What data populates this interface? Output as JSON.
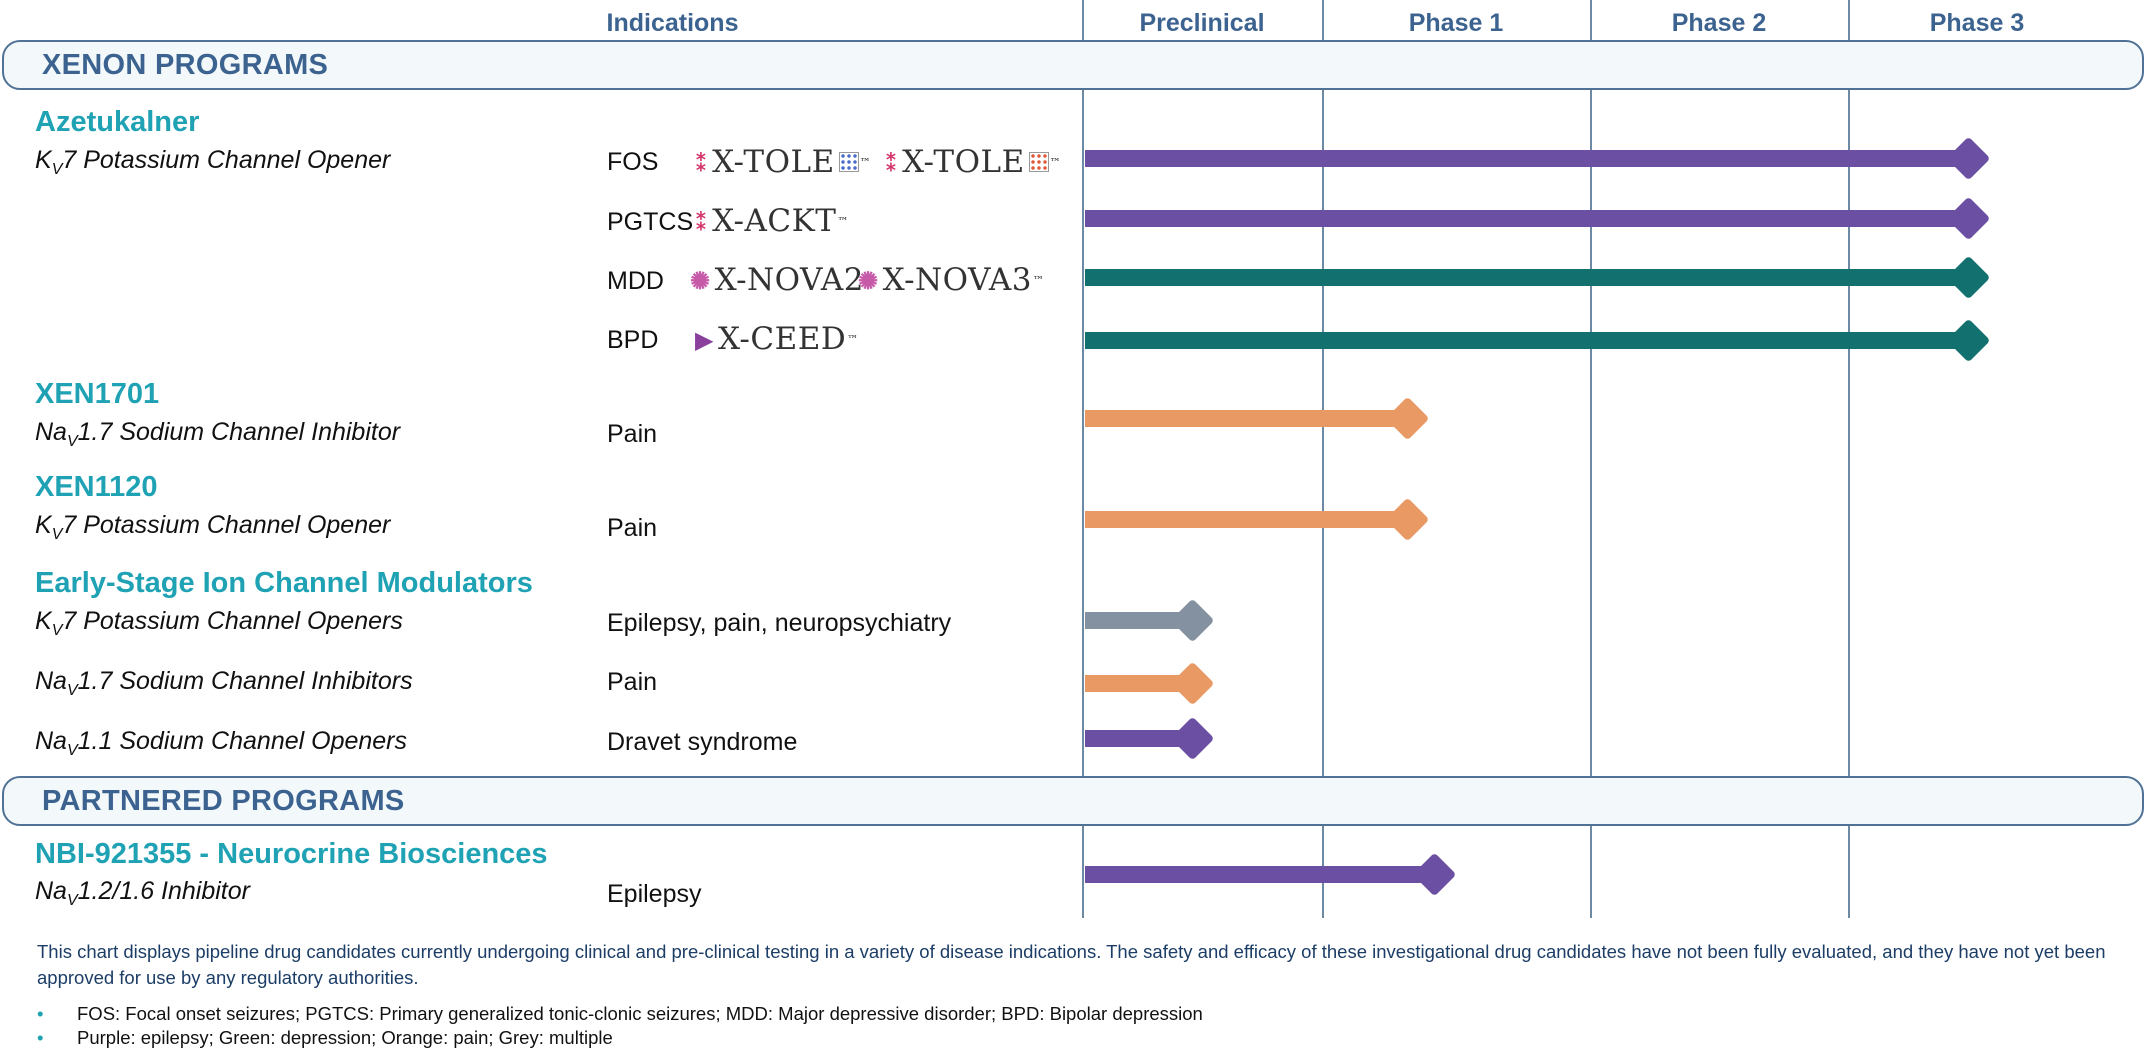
{
  "headers": {
    "indications": "Indications",
    "phases": [
      "Preclinical",
      "Phase 1",
      "Phase 2",
      "Phase 3"
    ]
  },
  "sections": {
    "xenon": "XENON PROGRAMS",
    "partnered": "PARTNERED PROGRAMS"
  },
  "programs": {
    "azetukalner": {
      "name": "Azetukalner",
      "mech_pre": "K",
      "mech_sub": "V",
      "mech_post": "7 Potassium Channel Opener",
      "rows": [
        {
          "indication": "FOS",
          "logos": [
            "X-TOLE",
            "X-TOLE"
          ],
          "tm": "™",
          "progress_phase": 3.55,
          "color": "#6b4fa3"
        },
        {
          "indication": "PGTCS",
          "logos": [
            "X-ACKT"
          ],
          "tm": "™",
          "progress_phase": 3.55,
          "color": "#6b4fa3"
        },
        {
          "indication": "MDD",
          "logos": [
            "X-NOVA2",
            "X-NOVA3"
          ],
          "tm": "™",
          "progress_phase": 3.55,
          "color": "#12706e"
        },
        {
          "indication": "BPD",
          "logos": [
            "X-CEED"
          ],
          "tm": "™",
          "progress_phase": 3.55,
          "color": "#12706e"
        }
      ]
    },
    "xen1701": {
      "name": "XEN1701",
      "mech_pre": "Na",
      "mech_sub": "V",
      "mech_post": "1.7 Sodium Channel Inhibitor",
      "indication": "Pain",
      "progress_phase": 1.4,
      "color": "#e99a64"
    },
    "xen1120": {
      "name": "XEN1120",
      "mech_pre": "K",
      "mech_sub": "V",
      "mech_post": "7 Potassium Channel Opener",
      "indication": "Pain",
      "progress_phase": 1.4,
      "color": "#e99a64"
    },
    "early": {
      "name": "Early-Stage Ion Channel Modulators",
      "rows": [
        {
          "mech_pre": "K",
          "mech_sub": "V",
          "mech_post": "7 Potassium Channel Openers",
          "indication": "Epilepsy, pain, neuropsychiatry",
          "progress_phase": 0.55,
          "color": "#8491a0"
        },
        {
          "mech_pre": "Na",
          "mech_sub": "V",
          "mech_post": "1.7 Sodium Channel Inhibitors",
          "indication": "Pain",
          "progress_phase": 0.55,
          "color": "#e99a64"
        },
        {
          "mech_pre": "Na",
          "mech_sub": "V",
          "mech_post": "1.1 Sodium Channel Openers",
          "indication": "Dravet syndrome",
          "progress_phase": 0.55,
          "color": "#6b4fa3"
        }
      ]
    },
    "nbi": {
      "name": "NBI-921355 - Neurocrine Biosciences",
      "mech_pre": "Na",
      "mech_sub": "V",
      "mech_post": "1.2/1.6 Inhibitor",
      "indication": "Epilepsy",
      "progress_phase": 1.5,
      "color": "#6b4fa3"
    }
  },
  "footnote": {
    "text": "This chart displays pipeline drug candidates currently undergoing clinical and pre-clinical testing in a variety of disease indications. The safety and efficacy of these investigational drug candidates have not been fully evaluated, and they have not yet been approved for use by any regulatory authorities.",
    "bullets": [
      "FOS: Focal onset seizures; PGTCS: Primary generalized tonic-clonic seizures; MDD: Major depressive disorder; BPD: Bipolar depression",
      "Purple: epilepsy; Green: depression; Orange: pain; Grey: multiple"
    ]
  }
}
